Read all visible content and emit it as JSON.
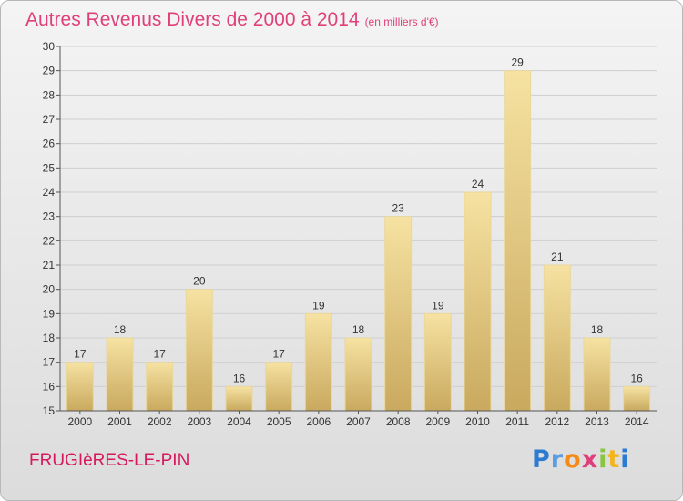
{
  "header": {
    "title": "Autres Revenus Divers de 2000 à 2014",
    "unit": "(en milliers d'€)"
  },
  "footer": {
    "place": "FRUGIèRES-LE-PIN",
    "logo_letters": [
      "P",
      "r",
      "o",
      "x",
      "i",
      "t",
      "i"
    ]
  },
  "colors": {
    "title": "#e0407a",
    "place": "#d5195c",
    "bar_light": "#f6e2a2",
    "bar_dark": "#c9a95e",
    "gridline": "#cfcfcf"
  },
  "chart_data": {
    "type": "bar",
    "title": "Autres Revenus Divers de 2000 à 2014",
    "subtitle": "(en milliers d'€)",
    "xlabel": "",
    "ylabel": "",
    "categories": [
      "2000",
      "2001",
      "2002",
      "2003",
      "2004",
      "2005",
      "2006",
      "2007",
      "2008",
      "2009",
      "2010",
      "2011",
      "2012",
      "2013",
      "2014"
    ],
    "values": [
      17,
      18,
      17,
      20,
      16,
      17,
      19,
      18,
      23,
      19,
      24,
      29,
      21,
      18,
      16
    ],
    "ylim": [
      15,
      30
    ],
    "yticks": [
      15,
      16,
      17,
      18,
      19,
      20,
      21,
      22,
      23,
      24,
      25,
      26,
      27,
      28,
      29,
      30
    ],
    "grid": true,
    "data_labels": true,
    "legend": "none"
  }
}
